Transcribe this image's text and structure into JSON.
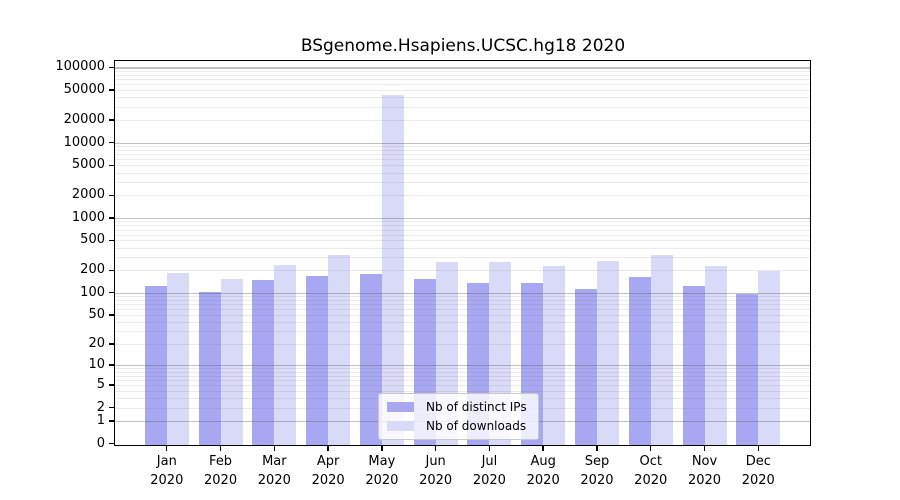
{
  "title": "BSgenome.Hsapiens.UCSC.hg18 2020",
  "chart_data": {
    "type": "bar",
    "title": "BSgenome.Hsapiens.UCSC.hg18 2020",
    "xlabel": "",
    "ylabel": "",
    "categories": [
      "Jan 2020",
      "Feb 2020",
      "Mar 2020",
      "Apr 2020",
      "May 2020",
      "Jun 2020",
      "Jul 2020",
      "Aug 2020",
      "Sep 2020",
      "Oct 2020",
      "Nov 2020",
      "Dec 2020"
    ],
    "series": [
      {
        "name": "Nb of distinct IPs",
        "color": "#a7a7f2",
        "values": [
          125,
          102,
          149,
          170,
          181,
          152,
          135,
          137,
          112,
          162,
          123,
          95
        ]
      },
      {
        "name": "Nb of downloads",
        "color": "#d9d9f8",
        "values": [
          183,
          151,
          237,
          322,
          43000,
          262,
          262,
          227,
          263,
          318,
          225,
          193
        ]
      }
    ],
    "yscale": "log10(1+x)",
    "ylim": [
      0,
      100000
    ],
    "ytick_values": [
      0,
      1,
      2,
      5,
      10,
      20,
      50,
      100,
      200,
      500,
      1000,
      2000,
      5000,
      10000,
      20000,
      50000,
      100000
    ],
    "grid": "horizontal, minor log gridlines, drawn over bars",
    "legend_position": "lower center"
  },
  "colors": {
    "background": "#ffffff",
    "axis_frame": "#000000",
    "bar_distinct_ips": "#a7a7f2",
    "bar_downloads": "#d9d9f8",
    "grid_major": "#c9c9c9",
    "grid_minor": "#ececec",
    "legend_border": "#c8c8c8"
  }
}
